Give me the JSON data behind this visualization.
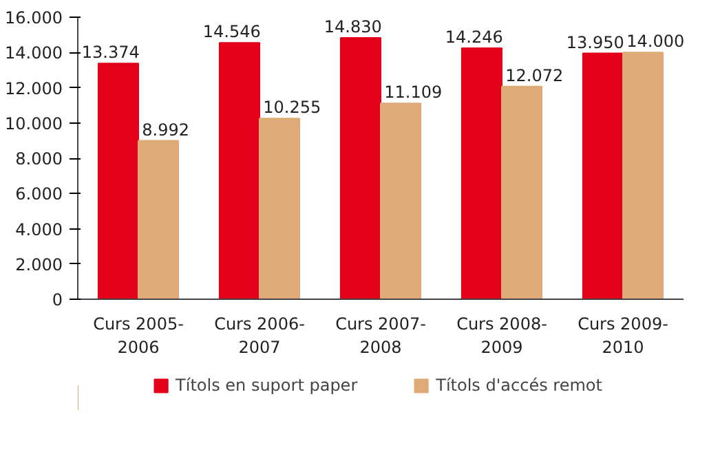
{
  "chart_data": {
    "type": "bar",
    "categories": [
      "Curs 2005-2006",
      "Curs 2006-2007",
      "Curs 2007-2008",
      "Curs 2008-2009",
      "Curs 2009-2010"
    ],
    "series": [
      {
        "name": "Títols en suport paper",
        "color": "#e2001a",
        "values": [
          13374,
          14546,
          14830,
          14246,
          13950
        ],
        "value_labels": [
          "13.374",
          "14.546",
          "14.830",
          "14.246",
          "13.950"
        ]
      },
      {
        "name": "Títols d'accés remot",
        "color": "#deaa78",
        "values": [
          8992,
          10255,
          11109,
          12072,
          14000
        ],
        "value_labels": [
          "8.992",
          "10.255",
          "11.109",
          "12.072",
          "14.000"
        ]
      }
    ],
    "ylim": [
      0,
      16000
    ],
    "yticks": [
      {
        "value": 0,
        "label": "0"
      },
      {
        "value": 2000,
        "label": "2.000"
      },
      {
        "value": 4000,
        "label": "4.000"
      },
      {
        "value": 6000,
        "label": "6.000"
      },
      {
        "value": 8000,
        "label": "8.000"
      },
      {
        "value": 10000,
        "label": "10.000"
      },
      {
        "value": 12000,
        "label": "12.000"
      },
      {
        "value": 14000,
        "label": "14.000"
      },
      {
        "value": 16000,
        "label": "16.000"
      }
    ],
    "grid": false,
    "legend": "bottom"
  }
}
